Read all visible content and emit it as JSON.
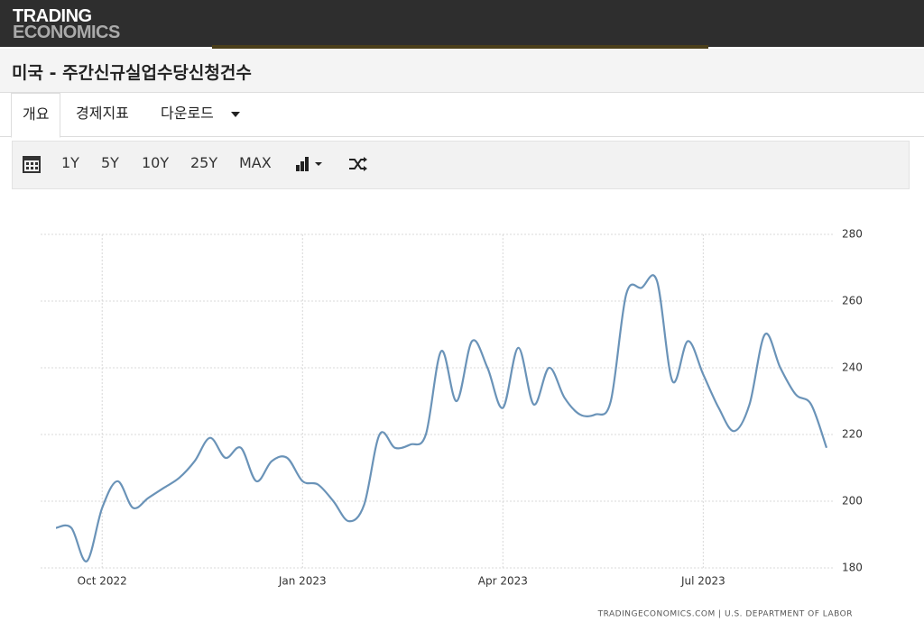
{
  "header": {
    "logo_line1": "TRADING",
    "logo_line2": "ECONOMICS"
  },
  "title": "미국 - 주간신규실업수당신청건수",
  "tabs": [
    "개요",
    "경제지표",
    "다운로드"
  ],
  "toolbar": {
    "ranges": [
      "1Y",
      "5Y",
      "10Y",
      "25Y",
      "MAX"
    ]
  },
  "chart_data": {
    "type": "line",
    "categories": [
      null,
      null,
      null,
      "Oct 2022",
      null,
      null,
      null,
      null,
      null,
      null,
      null,
      null,
      null,
      null,
      null,
      null,
      "Jan 2023",
      null,
      null,
      null,
      null,
      null,
      null,
      null,
      null,
      null,
      null,
      null,
      null,
      "Apr 2023",
      null,
      null,
      null,
      null,
      null,
      null,
      null,
      null,
      null,
      null,
      null,
      null,
      "Jul 2023",
      null,
      null,
      null,
      null,
      null,
      null,
      null,
      null
    ],
    "series": [
      {
        "color": "#6a93b8",
        "values": [
          192,
          192,
          182,
          198,
          206,
          198,
          201,
          204,
          207,
          212,
          219,
          213,
          216,
          206,
          212,
          213,
          206,
          205,
          200,
          194,
          199,
          220,
          216,
          217,
          220,
          245,
          230,
          248,
          240,
          228,
          246,
          229,
          240,
          231,
          226,
          226,
          230,
          262,
          264,
          266,
          236,
          248,
          238,
          228,
          221,
          229,
          250,
          240,
          232,
          229,
          216
        ]
      }
    ],
    "ylim": [
      180,
      280
    ],
    "yticks": [
      180,
      200,
      220,
      240,
      260,
      280
    ],
    "grid": true,
    "source": "TRADINGECONOMICS.COM  |  U.S. DEPARTMENT OF LABOR"
  }
}
